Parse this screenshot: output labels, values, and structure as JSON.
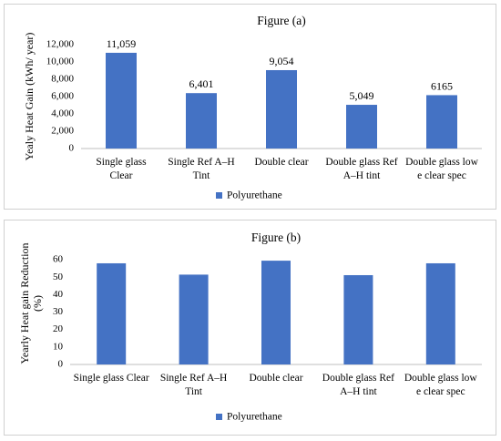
{
  "colors": {
    "bar": "#4472c4",
    "axis": "#bfbfbf"
  },
  "chart_data": [
    {
      "type": "bar",
      "title": "Figure (a)",
      "ylabel": "Yealy  Heat Gain (kWh/ year)",
      "ylim": [
        0,
        12000
      ],
      "yticks": [
        0,
        2000,
        4000,
        6000,
        8000,
        10000,
        12000
      ],
      "ytick_labels": [
        "0",
        "2,000",
        "4,000",
        "6,000",
        "8,000",
        "10,000",
        "12,000"
      ],
      "categories": [
        [
          "Single glass",
          "Clear"
        ],
        [
          "Single Ref A–H",
          "Tint"
        ],
        [
          "Double clear"
        ],
        [
          "Double glass Ref",
          "A–H tint"
        ],
        [
          "Double glass low",
          "e clear spec"
        ]
      ],
      "series": [
        {
          "name": "Polyurethane",
          "values": [
            11059,
            6401,
            9054,
            5049,
            6165
          ]
        }
      ],
      "data_labels": [
        "11,059",
        "6,401",
        "9,054",
        "5,049",
        "6165"
      ],
      "legend": "bottom"
    },
    {
      "type": "bar",
      "title": "Figure (b)",
      "ylabel": [
        "Yearly  Heat gain Reduction",
        "(%)"
      ],
      "ylim": [
        0,
        70
      ],
      "yticks": [
        0,
        10,
        20,
        30,
        40,
        50,
        60
      ],
      "ytick_labels": [
        "0",
        "10",
        "20",
        "30",
        "40",
        "50",
        "60"
      ],
      "categories": [
        [
          "Single glass Clear"
        ],
        [
          "Single Ref A–H",
          "Tint"
        ],
        [
          "Double clear"
        ],
        [
          "Double glass Ref",
          "A–H tint"
        ],
        [
          "Double glass low",
          "e clear spec"
        ]
      ],
      "series": [
        {
          "name": "Polyurethane",
          "values": [
            58,
            51.5,
            59.5,
            51.2,
            58
          ]
        }
      ],
      "legend": "bottom"
    }
  ]
}
